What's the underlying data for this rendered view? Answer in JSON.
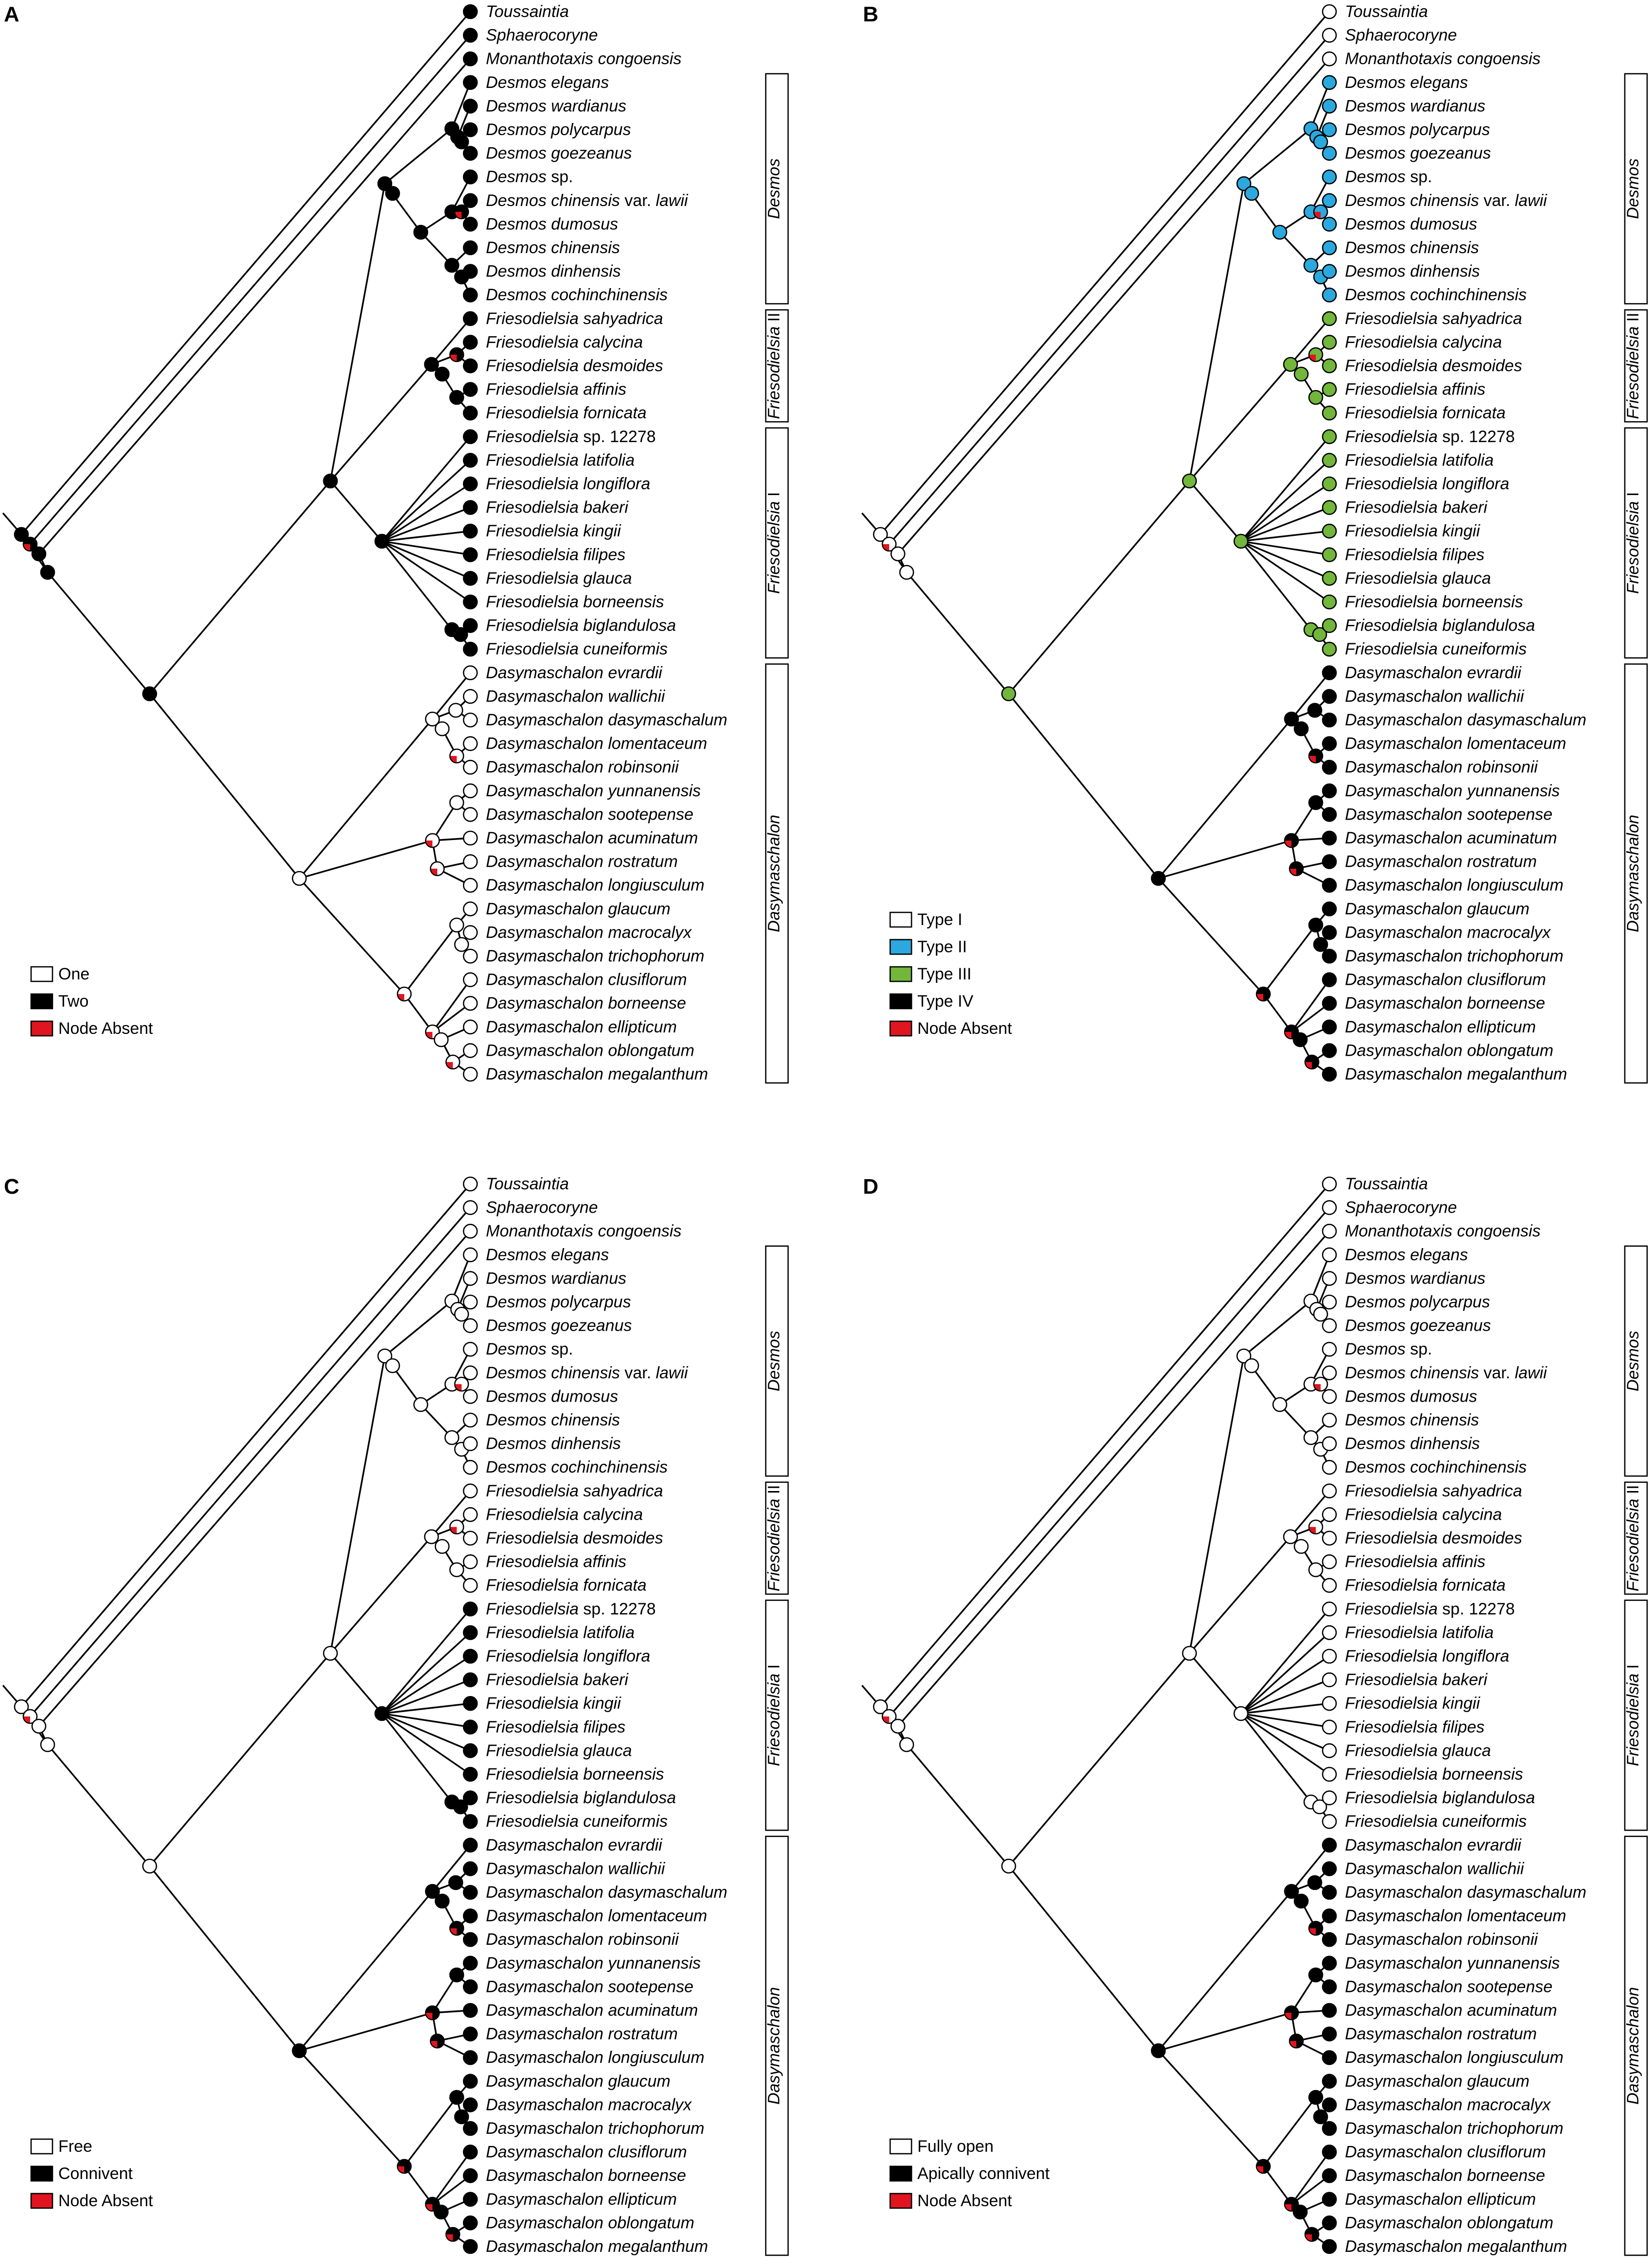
{
  "taxa": [
    {
      "genus": "Toussaintia",
      "rest": ""
    },
    {
      "genus": "Sphaerocoryne",
      "rest": ""
    },
    {
      "genus": "Monanthotaxis congoensis",
      "rest": ""
    },
    {
      "genus": "Desmos elegans",
      "rest": ""
    },
    {
      "genus": "Desmos wardianus",
      "rest": ""
    },
    {
      "genus": "Desmos polycarpus",
      "rest": ""
    },
    {
      "genus": "Desmos goezeanus",
      "rest": ""
    },
    {
      "genus": "Desmos",
      "rest": " sp."
    },
    {
      "genus": "Desmos chinensis",
      "rest": " var. ",
      "tail": "lawii"
    },
    {
      "genus": "Desmos dumosus",
      "rest": ""
    },
    {
      "genus": "Desmos chinensis",
      "rest": ""
    },
    {
      "genus": "Desmos dinhensis",
      "rest": ""
    },
    {
      "genus": "Desmos cochinchinensis",
      "rest": ""
    },
    {
      "genus": "Friesodielsia sahyadrica",
      "rest": ""
    },
    {
      "genus": "Friesodielsia calycina",
      "rest": ""
    },
    {
      "genus": "Friesodielsia desmoides",
      "rest": ""
    },
    {
      "genus": "Friesodielsia affinis",
      "rest": ""
    },
    {
      "genus": "Friesodielsia fornicata",
      "rest": ""
    },
    {
      "genus": "Friesodielsia",
      "rest": " sp. 12278"
    },
    {
      "genus": "Friesodielsia latifolia",
      "rest": ""
    },
    {
      "genus": "Friesodielsia longiflora",
      "rest": ""
    },
    {
      "genus": "Friesodielsia bakeri",
      "rest": ""
    },
    {
      "genus": "Friesodielsia kingii",
      "rest": ""
    },
    {
      "genus": "Friesodielsia filipes",
      "rest": ""
    },
    {
      "genus": "Friesodielsia glauca",
      "rest": ""
    },
    {
      "genus": "Friesodielsia borneensis",
      "rest": ""
    },
    {
      "genus": "Friesodielsia biglandulosa",
      "rest": ""
    },
    {
      "genus": "Friesodielsia cuneiformis",
      "rest": ""
    },
    {
      "genus": "Dasymaschalon evrardii",
      "rest": ""
    },
    {
      "genus": "Dasymaschalon wallichii",
      "rest": ""
    },
    {
      "genus": "Dasymaschalon dasymaschalum",
      "rest": ""
    },
    {
      "genus": "Dasymaschalon lomentaceum",
      "rest": ""
    },
    {
      "genus": "Dasymaschalon robinsonii",
      "rest": ""
    },
    {
      "genus": "Dasymaschalon yunnanensis",
      "rest": ""
    },
    {
      "genus": "Dasymaschalon sootepense",
      "rest": ""
    },
    {
      "genus": "Dasymaschalon acuminatum",
      "rest": ""
    },
    {
      "genus": "Dasymaschalon rostratum",
      "rest": ""
    },
    {
      "genus": "Dasymaschalon longiusculum",
      "rest": ""
    },
    {
      "genus": "Dasymaschalon glaucum",
      "rest": ""
    },
    {
      "genus": "Dasymaschalon macrocalyx",
      "rest": ""
    },
    {
      "genus": "Dasymaschalon trichophorum",
      "rest": ""
    },
    {
      "genus": "Dasymaschalon clusiflorum",
      "rest": ""
    },
    {
      "genus": "Dasymaschalon borneense",
      "rest": ""
    },
    {
      "genus": "Dasymaschalon ellipticum",
      "rest": ""
    },
    {
      "genus": "Dasymaschalon oblongatum",
      "rest": ""
    },
    {
      "genus": "Dasymaschalon megalanthum",
      "rest": ""
    }
  ],
  "clades": [
    {
      "name": "Desmos",
      "suffix": "",
      "first": 3,
      "last": 12
    },
    {
      "name": "Friesodielsia",
      "suffix": " II",
      "first": 13,
      "last": 17
    },
    {
      "name": "Friesodielsia",
      "suffix": " I",
      "first": 18,
      "last": 27
    },
    {
      "name": "Dasymaschalon",
      "suffix": "",
      "first": 28,
      "last": 45
    }
  ],
  "colors": {
    "white": "#ffffff",
    "black": "#000000",
    "red": "#e0151f",
    "blue": "#2ba9df",
    "green": "#72b63b"
  },
  "panels": [
    {
      "letter": "A",
      "legend": [
        {
          "label": "One",
          "color": "white"
        },
        {
          "label": "Two",
          "color": "black"
        },
        {
          "label": "Node Absent",
          "color": "red"
        }
      ],
      "states": {
        "outgroup": "black",
        "desmos": "black",
        "fries2": "black",
        "fries1": "black",
        "dasy": "white",
        "desmos_int": "black",
        "fries_int": "black",
        "dasy_int": "white",
        "root": "black"
      }
    },
    {
      "letter": "B",
      "legend": [
        {
          "label": "Type I",
          "color": "white"
        },
        {
          "label": "Type II",
          "color": "blue"
        },
        {
          "label": "Type III",
          "color": "green"
        },
        {
          "label": "Type IV",
          "color": "black"
        },
        {
          "label": "Node Absent",
          "color": "red"
        }
      ],
      "states": {
        "outgroup": "white",
        "desmos": "blue",
        "fries2": "green",
        "fries1": "green",
        "dasy": "black",
        "desmos_int": "blue",
        "fries_int": "green",
        "dasy_int": "black",
        "root": "green"
      }
    },
    {
      "letter": "C",
      "legend": [
        {
          "label": "Free",
          "color": "white"
        },
        {
          "label": "Connivent",
          "color": "black"
        },
        {
          "label": "Node Absent",
          "color": "red"
        }
      ],
      "states": {
        "outgroup": "white",
        "desmos": "white",
        "fries2": "white",
        "fries1": "black",
        "dasy": "black",
        "desmos_int": "white",
        "fries_int": "white",
        "dasy_int": "black",
        "root": "white"
      }
    },
    {
      "letter": "D",
      "legend": [
        {
          "label": "Fully open",
          "color": "white"
        },
        {
          "label": "Apically connivent",
          "color": "black"
        },
        {
          "label": "Node Absent",
          "color": "red"
        }
      ],
      "states": {
        "outgroup": "white",
        "desmos": "white",
        "fries2": "white",
        "fries1": "white",
        "dasy": "black",
        "desmos_int": "white",
        "fries_int": "white",
        "dasy_int": "black",
        "root": "white"
      }
    }
  ]
}
